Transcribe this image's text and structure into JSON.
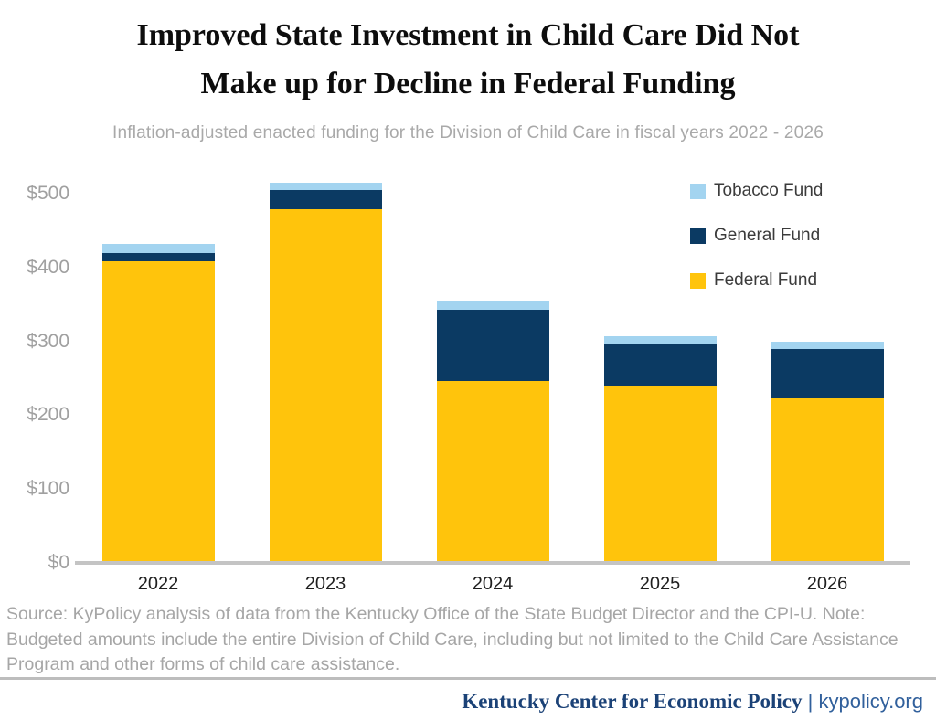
{
  "title": {
    "line1": "Improved State Investment in Child Care Did Not",
    "line2": "Make up for Decline in Federal Funding"
  },
  "subtitle": "Inflation-adjusted enacted funding for the Division of Child Care in fiscal years 2022 - 2026",
  "chart_data": {
    "type": "bar",
    "stacked": true,
    "title": "Improved State Investment in Child Care Did Not Make up for Decline in Federal Funding",
    "subtitle": "Inflation-adjusted enacted funding for the Division of Child Care in fiscal years 2022 - 2026",
    "categories": [
      "2022",
      "2023",
      "2024",
      "2025",
      "2026"
    ],
    "series": [
      {
        "name": "Federal Fund",
        "color": "#FFC40C",
        "values": [
          406,
          477,
          244,
          238,
          220
        ]
      },
      {
        "name": "General Fund",
        "color": "#0B3A63",
        "values": [
          11,
          26,
          96,
          57,
          67
        ]
      },
      {
        "name": "Tobacco Fund",
        "color": "#A3D4F0",
        "values": [
          12,
          10,
          13,
          10,
          10
        ]
      }
    ],
    "totals": [
      429,
      513,
      353,
      305,
      297
    ],
    "legend_items": [
      {
        "label": "Tobacco Fund",
        "color": "#A3D4F0"
      },
      {
        "label": "General Fund",
        "color": "#0B3A63"
      },
      {
        "label": "Federal Fund",
        "color": "#FFC40C"
      }
    ],
    "legend_position": "top-right",
    "xlabel": "",
    "ylabel": "",
    "ylim": [
      0,
      500
    ],
    "yticks": [
      {
        "value": 0,
        "label": "$0"
      },
      {
        "value": 100,
        "label": "$100"
      },
      {
        "value": 200,
        "label": "$200"
      },
      {
        "value": 300,
        "label": "$300"
      },
      {
        "value": 400,
        "label": "$400"
      },
      {
        "value": 500,
        "label": "$500"
      }
    ],
    "grid": false
  },
  "footnote": {
    "source": "Source: KyPolicy analysis of data from the Kentucky Office of the State Budget Director and the CPI-U.",
    "note": "Note: Budgeted amounts include the entire Division of Child Care, including but not limited to the Child Care Assistance Program and other forms of child care assistance."
  },
  "footer": {
    "org": "Kentucky Center for Economic Policy",
    "separator": " | ",
    "site": "kypolicy.org"
  },
  "colors": {
    "federal_fund": "#FFC40C",
    "general_fund": "#0B3A63",
    "tobacco_fund": "#A3D4F0",
    "axis_text": "#a0a0a0",
    "axis_line": "#c4c4c4",
    "footnote_text": "#a6a6a6",
    "footer_navy": "#1b4277",
    "footer_link_blue": "#31609c"
  }
}
